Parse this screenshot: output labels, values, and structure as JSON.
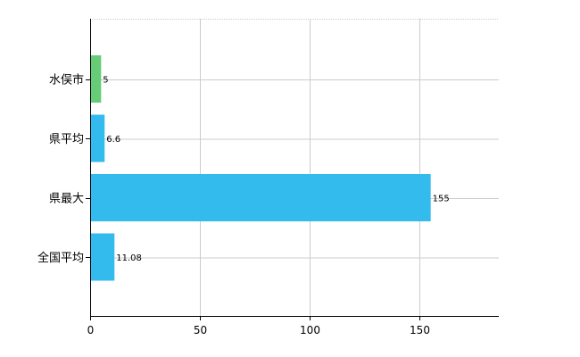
{
  "chart_data": {
    "type": "bar",
    "orientation": "horizontal",
    "title": "",
    "xlabel": "",
    "ylabel": "",
    "categories": [
      "水俣市",
      "県平均",
      "県最大",
      "全国平均"
    ],
    "values": [
      5,
      6.6,
      155,
      11.08
    ],
    "value_labels": [
      "5",
      "6.6",
      "155",
      "11.08"
    ],
    "bar_colors": [
      "#66cc77",
      "#33bbee",
      "#33bbee",
      "#33bbee"
    ],
    "xlim": [
      0,
      186
    ],
    "x_ticks": [
      0,
      50,
      100,
      150
    ],
    "x_tick_labels": [
      "0",
      "50",
      "100",
      "150"
    ],
    "grid": true,
    "legend": "none",
    "colors": {
      "grid": "#cccccc",
      "axis": "#000000"
    }
  }
}
